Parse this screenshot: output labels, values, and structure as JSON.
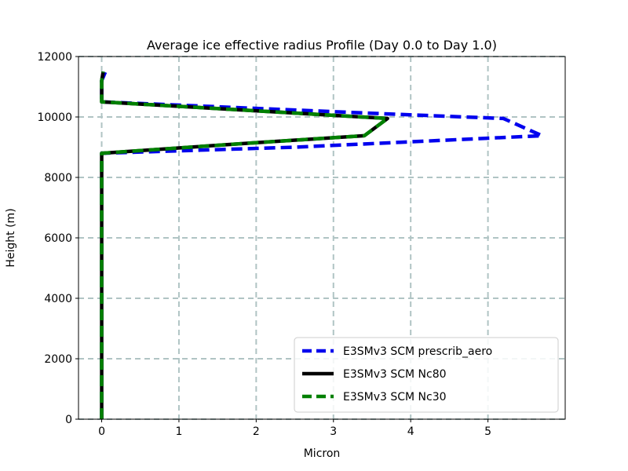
{
  "chart_data": {
    "type": "line",
    "title": "Average ice effective radius Profile (Day 0.0 to Day 1.0)",
    "xlabel": "Micron",
    "ylabel": "Height (m)",
    "xlim": [
      -0.3,
      6.0
    ],
    "ylim": [
      0,
      12000
    ],
    "xticks": [
      0,
      1,
      2,
      3,
      4,
      5
    ],
    "yticks": [
      0,
      2000,
      4000,
      6000,
      8000,
      10000,
      12000
    ],
    "grid": true,
    "legend_position": "lower-right",
    "series": [
      {
        "name": "E3SMv3 SCM prescrib_aero",
        "color": "#0000ee",
        "style": "dashed",
        "points": [
          [
            0,
            0
          ],
          [
            0,
            8800
          ],
          [
            2.5,
            9000
          ],
          [
            5.7,
            9380
          ],
          [
            5.2,
            9950
          ],
          [
            3.7,
            10100
          ],
          [
            0,
            10500
          ],
          [
            0,
            11200
          ],
          [
            0.05,
            11500
          ]
        ]
      },
      {
        "name": "E3SMv3 SCM Nc80",
        "color": "#000000",
        "style": "solid",
        "points": [
          [
            0,
            0
          ],
          [
            0,
            8800
          ],
          [
            2.0,
            9150
          ],
          [
            3.4,
            9380
          ],
          [
            3.7,
            9950
          ],
          [
            0,
            10500
          ],
          [
            0,
            11200
          ],
          [
            0.02,
            11500
          ]
        ]
      },
      {
        "name": "E3SMv3 SCM Nc30",
        "color": "#008000",
        "style": "dashed",
        "points": [
          [
            0,
            0
          ],
          [
            0,
            8800
          ],
          [
            2.0,
            9150
          ],
          [
            3.4,
            9380
          ],
          [
            3.7,
            9950
          ],
          [
            0,
            10500
          ],
          [
            0,
            11200
          ],
          [
            0.02,
            11500
          ]
        ]
      }
    ]
  }
}
